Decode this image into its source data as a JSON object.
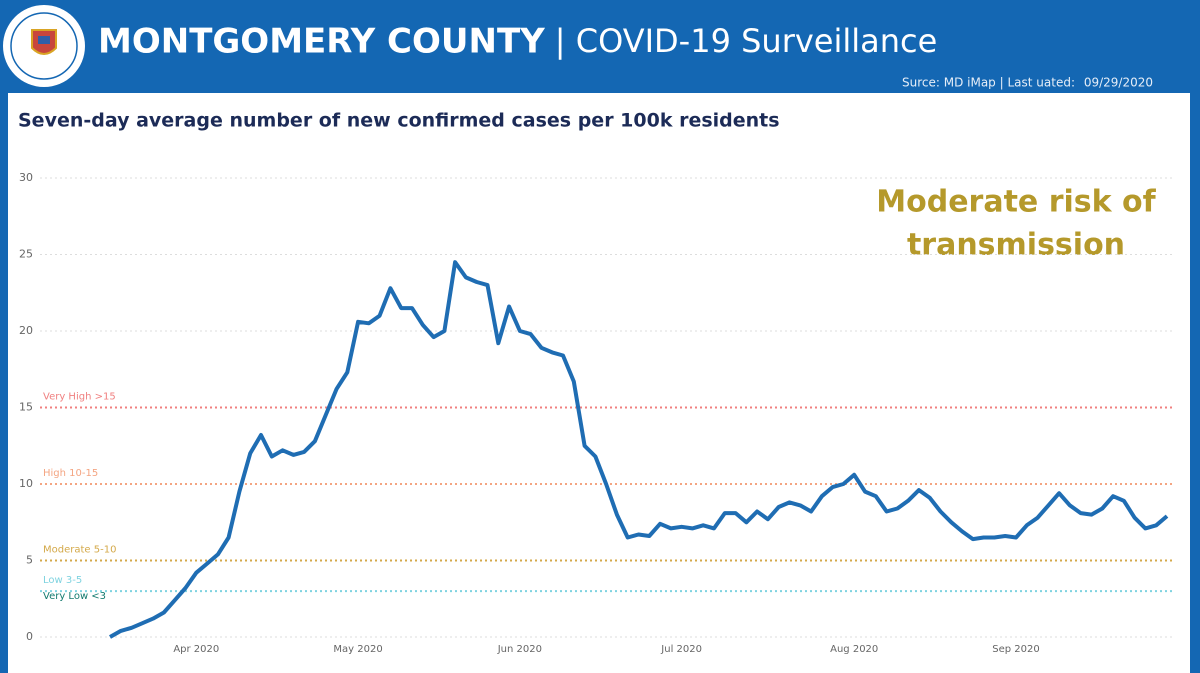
{
  "header": {
    "title_bold": "MONTGOMERY COUNTY",
    "title_light": "| COVID-19 Surveillance",
    "source": "Surce: MD iMap | Last uated:",
    "date": "09/29/2020"
  },
  "chart_data": {
    "type": "line",
    "title": "Seven-day average number of new confirmed cases per 100k residents",
    "annotation": [
      "Moderate risk of",
      "transmission"
    ],
    "categories": [
      null,
      null,
      null,
      null,
      null,
      null,
      null,
      null,
      "Apr 2020",
      null,
      null,
      null,
      null,
      null,
      null,
      null,
      null,
      null,
      null,
      null,
      null,
      null,
      null,
      "May 2020",
      null,
      null,
      null,
      null,
      null,
      null,
      null,
      null,
      null,
      null,
      null,
      null,
      null,
      null,
      "Jun 2020",
      null,
      null,
      null,
      null,
      null,
      null,
      null,
      null,
      null,
      null,
      null,
      null,
      null,
      null,
      "Jul 2020",
      null,
      null,
      null,
      null,
      null,
      null,
      null,
      null,
      null,
      null,
      null,
      null,
      null,
      null,
      null,
      "Aug 2020",
      null,
      null,
      null,
      null,
      null,
      null,
      null,
      null,
      null,
      null,
      null,
      null,
      null,
      null,
      "Sep 2020",
      null,
      null,
      null,
      null,
      null,
      null,
      null,
      null,
      null,
      null,
      null,
      null,
      null,
      null
    ],
    "values": [
      0,
      0.4,
      0.6,
      0.9,
      1.2,
      1.6,
      2.4,
      3.2,
      4.2,
      4.8,
      5.4,
      6.5,
      9.5,
      12,
      13.2,
      11.8,
      12.2,
      11.9,
      12.1,
      12.8,
      14.5,
      16.2,
      17.3,
      20.6,
      20.5,
      21,
      22.8,
      21.5,
      21.5,
      20.4,
      19.6,
      20,
      24.5,
      23.5,
      23.2,
      23,
      19.2,
      21.6,
      20,
      19.8,
      18.9,
      18.6,
      18.4,
      16.7,
      12.5,
      11.8,
      10,
      8,
      6.5,
      6.7,
      6.6,
      7.4,
      7.1,
      7.2,
      7.1,
      7.3,
      7.1,
      8.1,
      8.1,
      7.5,
      8.2,
      7.7,
      8.5,
      8.8,
      8.6,
      8.2,
      9.2,
      9.8,
      10,
      10.6,
      9.5,
      9.2,
      8.2,
      8.4,
      8.9,
      9.6,
      9.1,
      8.2,
      7.5,
      6.9,
      6.4,
      6.5,
      6.5,
      6.6,
      6.5,
      7.3,
      7.8,
      8.6,
      9.4,
      8.6,
      8.1,
      8,
      8.4,
      9.2,
      8.9,
      7.8,
      7.1,
      7.3,
      7.9
    ],
    "color": "#1f6db3",
    "ylim": [
      0,
      30
    ],
    "yticks": [
      0,
      5,
      10,
      15,
      20,
      25,
      30
    ],
    "grid": true,
    "thresholds": [
      {
        "label": "Very High >15",
        "value": 15,
        "color": "#f08080"
      },
      {
        "label": "High 10-15",
        "value": 10,
        "color": "#f4a582"
      },
      {
        "label": "Moderate 5-10",
        "value": 5,
        "color": "#d4a94a"
      },
      {
        "label": "Low 3-5",
        "value": 3,
        "color": "#7fd3e0"
      }
    ],
    "below_label": {
      "label": "Very Low <3",
      "color": "#137a6e"
    }
  }
}
